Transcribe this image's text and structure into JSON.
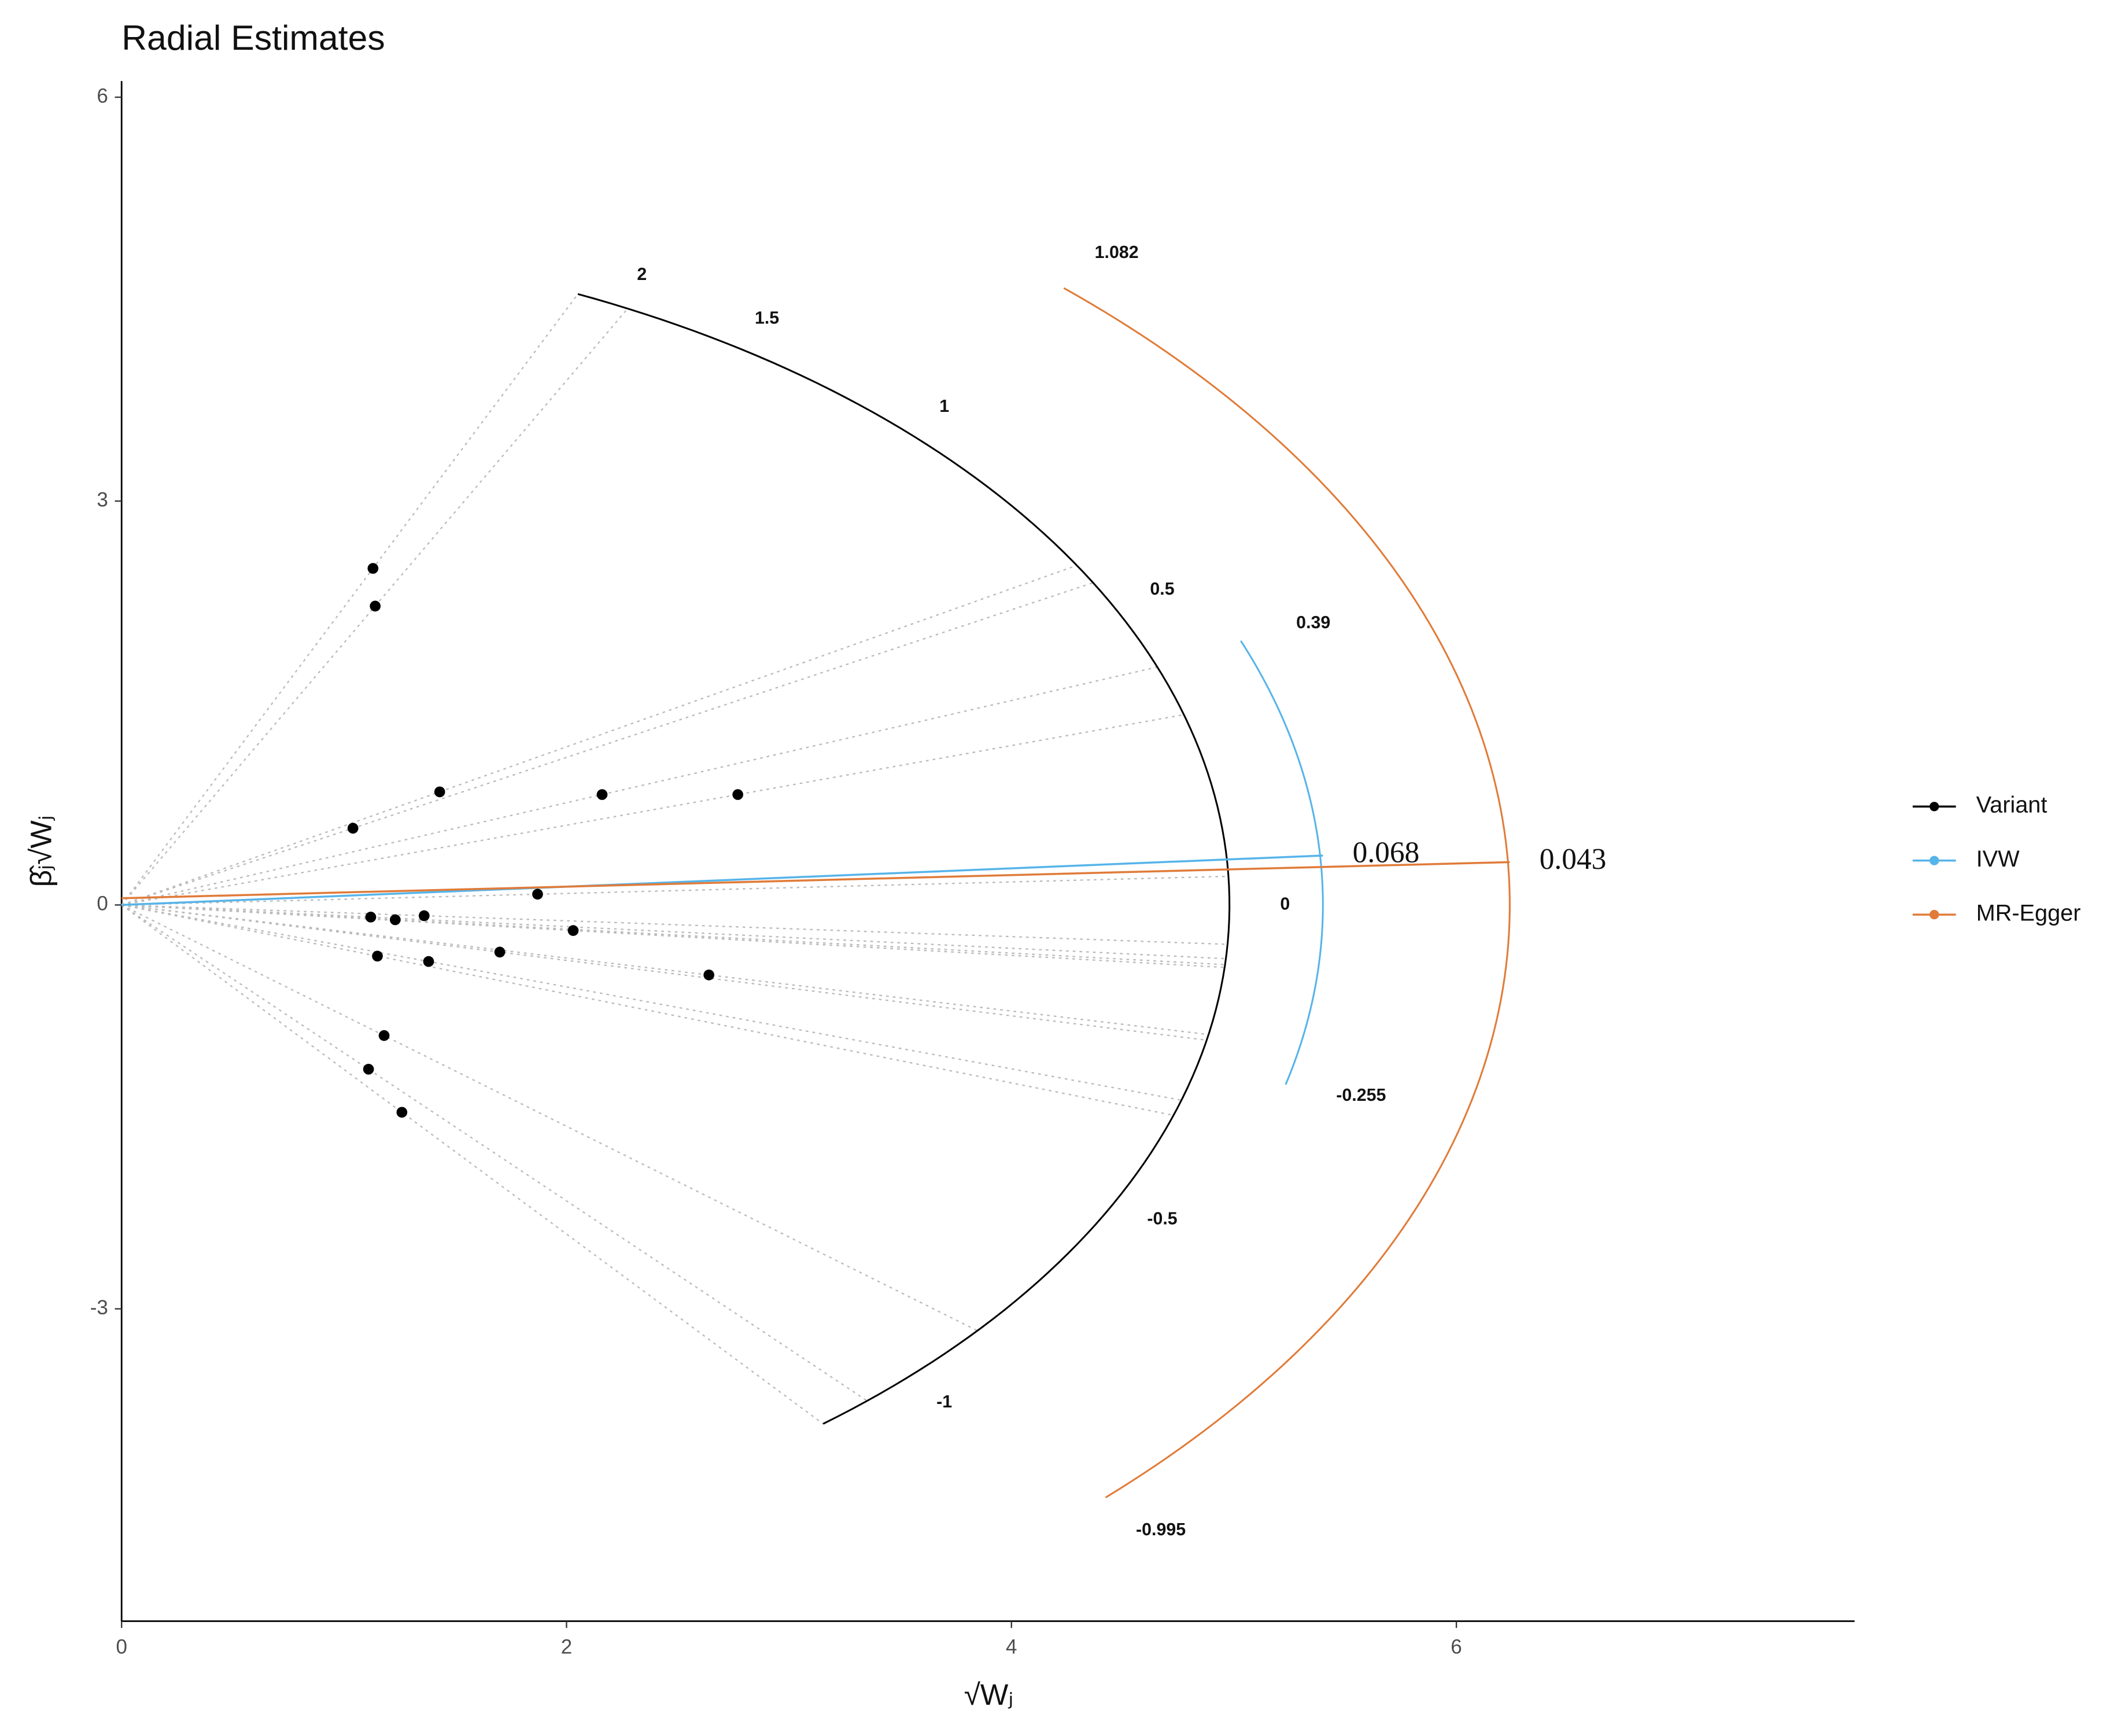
{
  "chart_data": {
    "type": "radial",
    "title": "Radial Estimates",
    "x_label": "√Wⱼ",
    "y_label": "β̂ⱼ√Wⱼ",
    "xlim": [
      0,
      7.79
    ],
    "ylim": [
      -5.32,
      6.12
    ],
    "xticks": [
      0,
      2,
      4,
      6
    ],
    "yticks": [
      -3,
      0,
      3,
      6
    ],
    "legend_position": "right",
    "series": [
      {
        "name": "Variant",
        "color": "#000000",
        "x": [
          1.13,
          1.14,
          1.04,
          1.43,
          2.16,
          2.77,
          1.87,
          1.12,
          1.23,
          1.36,
          2.03,
          1.7,
          1.15,
          1.38,
          2.64,
          1.18,
          1.11,
          1.26
        ],
        "values": [
          2.5,
          2.22,
          0.57,
          0.84,
          0.82,
          0.82,
          0.08,
          -0.09,
          -0.11,
          -0.08,
          -0.19,
          -0.35,
          -0.38,
          -0.42,
          -0.52,
          -0.97,
          -1.22,
          -1.54
        ],
        "arc_radius": 4.98,
        "scale_ticks": [
          2,
          1.5,
          1,
          0.5,
          0,
          -0.5,
          -1
        ]
      },
      {
        "name": "IVW",
        "color": "#56B4E9",
        "estimate": 0.068,
        "ci": [
          0.39,
          -0.255
        ],
        "arc_radius": 5.4
      },
      {
        "name": "MR-Egger",
        "color": "#E07B39",
        "estimate": 0.043,
        "intercept": 0.05,
        "ci": [
          1.082,
          -0.995
        ],
        "arc_radius": 6.24
      }
    ]
  }
}
